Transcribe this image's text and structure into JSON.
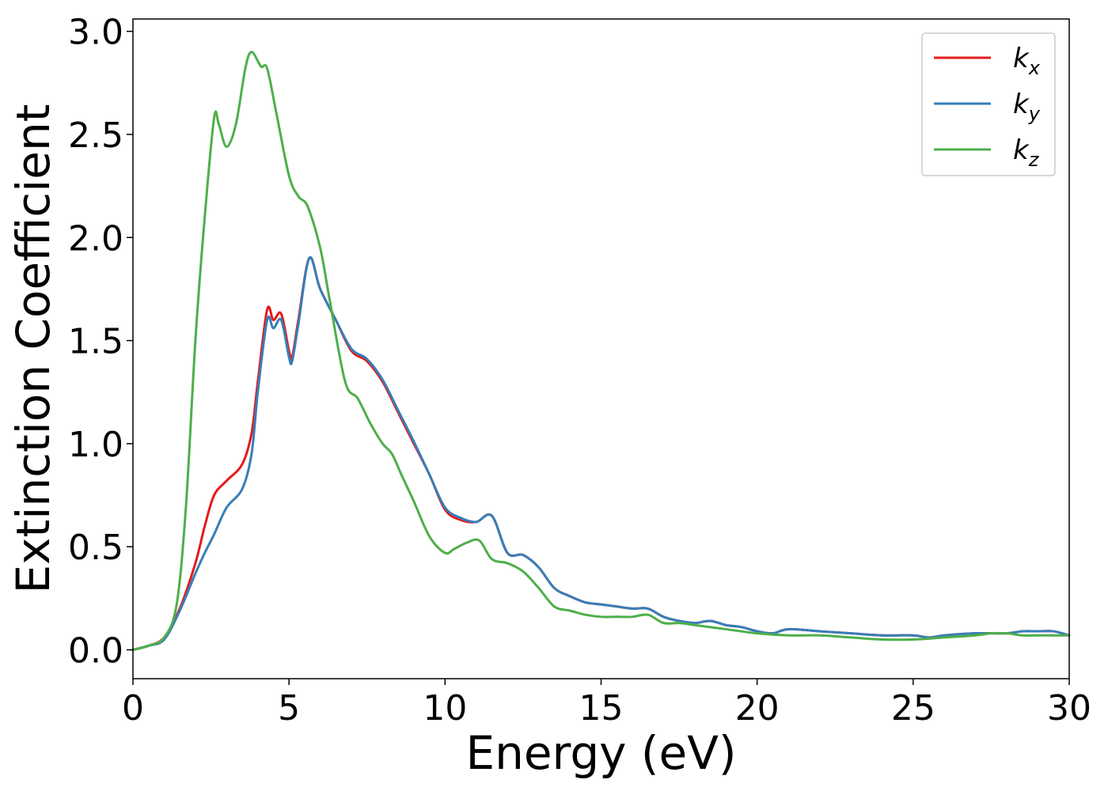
{
  "chart_data": {
    "type": "line",
    "title": "",
    "xlabel": "Energy (eV)",
    "ylabel": "Extinction Coefficient",
    "xlim": [
      0,
      30
    ],
    "ylim": [
      -0.14,
      3.06
    ],
    "xticks": [
      0,
      5,
      10,
      15,
      20,
      25,
      30
    ],
    "xtick_labels": [
      "0",
      "5",
      "10",
      "15",
      "20",
      "25",
      "30"
    ],
    "yticks": [
      0.0,
      0.5,
      1.0,
      1.5,
      2.0,
      2.5,
      3.0
    ],
    "ytick_labels": [
      "0.0",
      "0.5",
      "1.0",
      "1.5",
      "2.0",
      "2.5",
      "3.0"
    ],
    "grid": false,
    "legend_position": "top-right",
    "series": [
      {
        "name": "k_x",
        "label_base": "k",
        "label_sub": "x",
        "color": "#e41a1c",
        "x": [
          0,
          0.5,
          1.0,
          1.5,
          2.0,
          2.3,
          2.6,
          3.0,
          3.5,
          3.8,
          4.0,
          4.3,
          4.5,
          4.75,
          5.0,
          5.1,
          5.3,
          5.65,
          6.0,
          6.5,
          7.0,
          7.5,
          8.0,
          8.5,
          9.0,
          9.5,
          10.0,
          10.5,
          11.0,
          11.5,
          12.0,
          12.5,
          13.0,
          13.5,
          14.0,
          14.5,
          15.0,
          15.5,
          16.0,
          16.5,
          17.0,
          17.5,
          18.0,
          18.5,
          19.0,
          19.5,
          20.0,
          20.5,
          21.0,
          22.0,
          23.0,
          24.0,
          25.0,
          25.5,
          26.0,
          27.0,
          28.0,
          28.5,
          29.0,
          29.5,
          30.0
        ],
        "values": [
          0.0,
          0.02,
          0.06,
          0.2,
          0.42,
          0.6,
          0.75,
          0.82,
          0.9,
          1.05,
          1.3,
          1.65,
          1.6,
          1.63,
          1.45,
          1.42,
          1.6,
          1.9,
          1.75,
          1.6,
          1.45,
          1.4,
          1.3,
          1.15,
          1.0,
          0.85,
          0.68,
          0.63,
          0.62,
          0.65,
          0.47,
          0.46,
          0.4,
          0.3,
          0.26,
          0.23,
          0.22,
          0.21,
          0.2,
          0.2,
          0.16,
          0.14,
          0.13,
          0.14,
          0.12,
          0.11,
          0.09,
          0.08,
          0.1,
          0.09,
          0.08,
          0.07,
          0.07,
          0.06,
          0.07,
          0.08,
          0.08,
          0.09,
          0.09,
          0.09,
          0.07
        ]
      },
      {
        "name": "k_y",
        "label_base": "k",
        "label_sub": "y",
        "color": "#377eb8",
        "x": [
          0,
          0.5,
          1.0,
          1.5,
          2.0,
          2.3,
          2.6,
          3.0,
          3.5,
          3.8,
          4.0,
          4.3,
          4.5,
          4.75,
          5.0,
          5.1,
          5.3,
          5.65,
          6.0,
          6.5,
          7.0,
          7.5,
          8.0,
          8.5,
          9.0,
          9.5,
          10.0,
          10.5,
          11.0,
          11.5,
          12.0,
          12.5,
          13.0,
          13.5,
          14.0,
          14.5,
          15.0,
          15.5,
          16.0,
          16.5,
          17.0,
          17.5,
          18.0,
          18.5,
          19.0,
          19.5,
          20.0,
          20.5,
          21.0,
          22.0,
          23.0,
          24.0,
          25.0,
          25.5,
          26.0,
          27.0,
          28.0,
          28.5,
          29.0,
          29.5,
          30.0
        ],
        "values": [
          0.0,
          0.02,
          0.05,
          0.19,
          0.37,
          0.47,
          0.56,
          0.69,
          0.78,
          0.95,
          1.25,
          1.6,
          1.56,
          1.6,
          1.42,
          1.4,
          1.58,
          1.9,
          1.75,
          1.6,
          1.46,
          1.41,
          1.31,
          1.16,
          1.01,
          0.85,
          0.69,
          0.64,
          0.62,
          0.65,
          0.47,
          0.46,
          0.4,
          0.3,
          0.26,
          0.23,
          0.22,
          0.21,
          0.2,
          0.2,
          0.16,
          0.14,
          0.13,
          0.14,
          0.12,
          0.11,
          0.09,
          0.08,
          0.1,
          0.09,
          0.08,
          0.07,
          0.07,
          0.06,
          0.07,
          0.08,
          0.08,
          0.09,
          0.09,
          0.09,
          0.07
        ]
      },
      {
        "name": "k_z",
        "label_base": "k",
        "label_sub": "z",
        "color": "#4daf4a",
        "x": [
          0,
          0.5,
          1.0,
          1.4,
          1.7,
          2.0,
          2.3,
          2.6,
          2.75,
          3.0,
          3.3,
          3.6,
          3.8,
          4.1,
          4.3,
          4.6,
          5.0,
          5.3,
          5.6,
          6.0,
          6.3,
          6.8,
          7.2,
          7.6,
          8.0,
          8.3,
          8.6,
          9.0,
          9.5,
          10.0,
          10.3,
          10.7,
          11.1,
          11.5,
          12.0,
          12.5,
          13.0,
          13.5,
          14.0,
          14.5,
          15.0,
          15.5,
          16.0,
          16.5,
          17.0,
          17.5,
          18.0,
          18.5,
          19.0,
          20.0,
          21.0,
          22.0,
          23.0,
          24.0,
          25.0,
          26.0,
          27.0,
          27.5,
          28.0,
          28.5,
          29.0,
          30.0
        ],
        "values": [
          0.0,
          0.02,
          0.06,
          0.22,
          0.7,
          1.5,
          2.1,
          2.58,
          2.55,
          2.44,
          2.55,
          2.82,
          2.9,
          2.83,
          2.82,
          2.6,
          2.3,
          2.2,
          2.15,
          1.95,
          1.7,
          1.3,
          1.22,
          1.1,
          1.0,
          0.95,
          0.85,
          0.72,
          0.55,
          0.47,
          0.49,
          0.52,
          0.53,
          0.44,
          0.42,
          0.38,
          0.3,
          0.21,
          0.19,
          0.17,
          0.16,
          0.16,
          0.16,
          0.17,
          0.13,
          0.13,
          0.12,
          0.11,
          0.1,
          0.08,
          0.07,
          0.07,
          0.06,
          0.05,
          0.05,
          0.06,
          0.07,
          0.08,
          0.08,
          0.07,
          0.07,
          0.07
        ]
      }
    ]
  }
}
